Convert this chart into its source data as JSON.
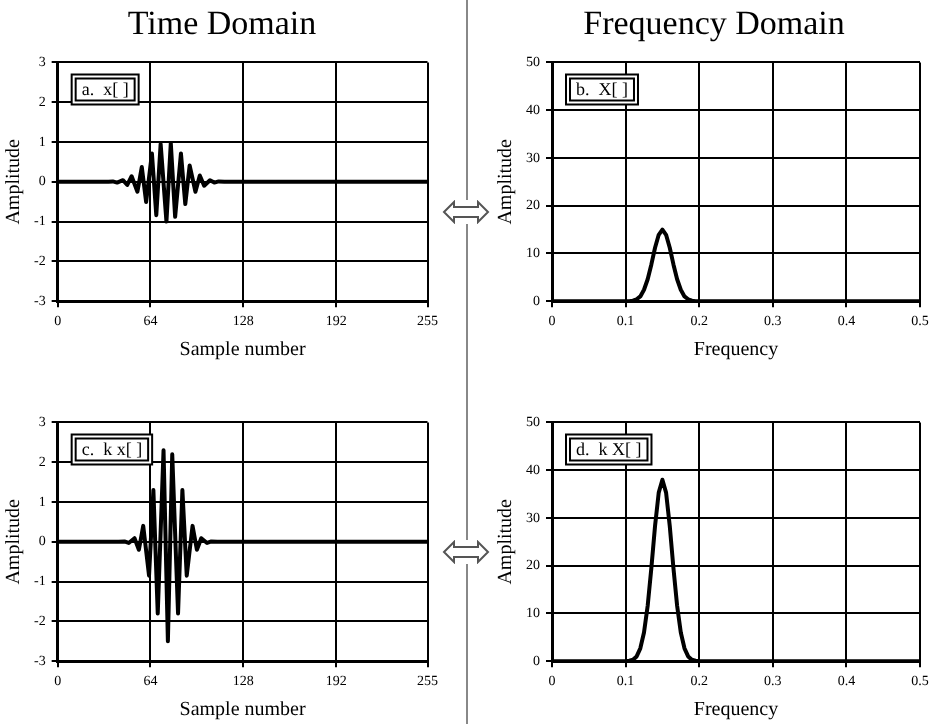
{
  "chart_data": [
    {
      "type": "line",
      "title": "Time Domain",
      "xlabel": "Sample number",
      "ylabel": "Amplitude",
      "annotations": [
        "a.  x[ ]"
      ],
      "xlim": [
        0,
        255
      ],
      "xticks": [
        0,
        64,
        128,
        192,
        255
      ],
      "ylim": [
        -3,
        3
      ],
      "yticks": [
        -3,
        -2,
        -1,
        0,
        1,
        2,
        3
      ],
      "grid": true,
      "marker": "none",
      "line_style": "solid",
      "series": [
        {
          "color": "#000000",
          "x": [
            0,
            35,
            38,
            41,
            45,
            48,
            51,
            55,
            58,
            61,
            65,
            68,
            71,
            75,
            78,
            81,
            85,
            88,
            91,
            95,
            98,
            101,
            105,
            108,
            111,
            115,
            255
          ],
          "values": [
            0,
            0,
            0.01,
            -0.02,
            0.04,
            -0.08,
            0.14,
            -0.25,
            0.37,
            -0.51,
            0.71,
            -0.84,
            0.95,
            -1,
            0.97,
            -0.88,
            0.71,
            -0.56,
            0.41,
            -0.25,
            0.16,
            -0.1,
            0.04,
            -0.02,
            0.01,
            0,
            0
          ]
        }
      ]
    },
    {
      "type": "line",
      "title": "Frequency Domain",
      "xlabel": "Frequency",
      "ylabel": "Amplitude",
      "annotations": [
        "b.  X[ ]"
      ],
      "xlim": [
        0,
        0.5
      ],
      "xticks": [
        0,
        0.1,
        0.2,
        0.3,
        0.4,
        0.5
      ],
      "ylim": [
        0,
        50
      ],
      "yticks": [
        0,
        10,
        20,
        30,
        40,
        50
      ],
      "grid": true,
      "marker": "none",
      "line_style": "solid",
      "series": [
        {
          "color": "#000000",
          "x": [
            0,
            0.1,
            0.105,
            0.11,
            0.115,
            0.12,
            0.125,
            0.13,
            0.135,
            0.14,
            0.145,
            0.15,
            0.155,
            0.16,
            0.165,
            0.17,
            0.175,
            0.18,
            0.185,
            0.19,
            0.195,
            0.2,
            0.5
          ],
          "values": [
            0,
            0,
            0,
            0.1,
            0.4,
            1,
            2.4,
            4.6,
            7.7,
            11.2,
            13.9,
            15,
            13.9,
            11.2,
            7.7,
            4.6,
            2.4,
            1,
            0.4,
            0.1,
            0,
            0,
            0
          ]
        }
      ]
    },
    {
      "type": "line",
      "xlabel": "Sample number",
      "ylabel": "Amplitude",
      "annotations": [
        "c.  k x[ ]"
      ],
      "xlim": [
        0,
        255
      ],
      "xticks": [
        0,
        64,
        128,
        192,
        255
      ],
      "ylim": [
        -3,
        3
      ],
      "yticks": [
        -3,
        -2,
        -1,
        0,
        1,
        2,
        3
      ],
      "grid": true,
      "marker": "none",
      "line_style": "solid",
      "series": [
        {
          "color": "#000000",
          "x": [
            0,
            42,
            46,
            49,
            53,
            56,
            59,
            63,
            66,
            69,
            73,
            76,
            79,
            83,
            86,
            89,
            93,
            96,
            99,
            103,
            106,
            110,
            255
          ],
          "values": [
            0,
            0,
            0.01,
            -0.03,
            0.09,
            -0.2,
            0.4,
            -0.85,
            1.3,
            -1.8,
            2.3,
            -2.5,
            2.2,
            -1.8,
            1.3,
            -0.85,
            0.4,
            -0.2,
            0.09,
            -0.03,
            0.01,
            0,
            0
          ]
        }
      ]
    },
    {
      "type": "line",
      "xlabel": "Frequency",
      "ylabel": "Amplitude",
      "annotations": [
        "d.  k X[ ]"
      ],
      "xlim": [
        0,
        0.5
      ],
      "xticks": [
        0,
        0.1,
        0.2,
        0.3,
        0.4,
        0.5
      ],
      "ylim": [
        0,
        50
      ],
      "yticks": [
        0,
        10,
        20,
        30,
        40,
        50
      ],
      "grid": true,
      "marker": "none",
      "line_style": "solid",
      "series": [
        {
          "color": "#000000",
          "x": [
            0,
            0.1,
            0.105,
            0.11,
            0.115,
            0.12,
            0.125,
            0.13,
            0.135,
            0.14,
            0.145,
            0.15,
            0.155,
            0.16,
            0.165,
            0.17,
            0.175,
            0.18,
            0.185,
            0.19,
            0.195,
            0.2,
            0.5
          ],
          "values": [
            0,
            0,
            0.1,
            0.3,
            1,
            2.7,
            6,
            11.6,
            19.5,
            28.3,
            35.3,
            38,
            35.3,
            28.3,
            19.5,
            11.6,
            6,
            2.7,
            1,
            0.3,
            0.1,
            0,
            0
          ]
        }
      ]
    }
  ]
}
